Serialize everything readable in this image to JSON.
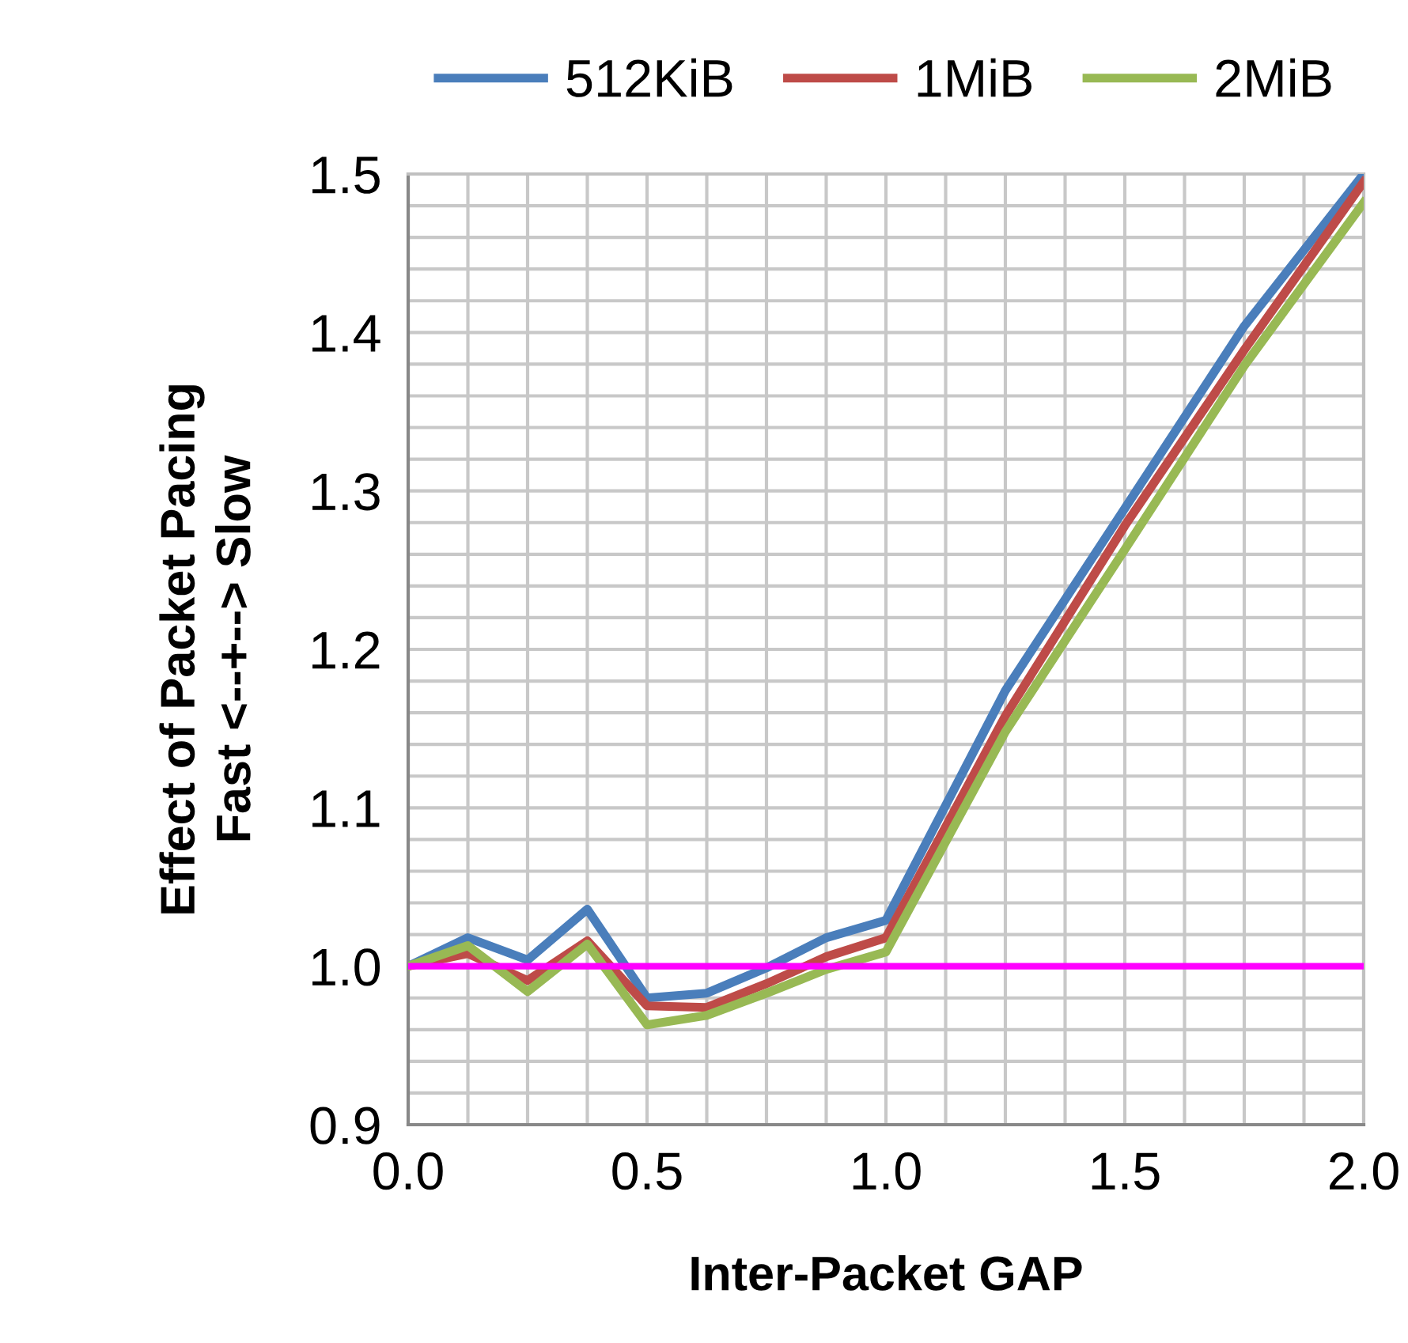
{
  "chart_data": {
    "type": "line",
    "xlabel": "Inter-Packet GAP",
    "ylabel": "Effect of Packet Pacing\nFast <--+--> Slow",
    "x": [
      0,
      0.125,
      0.25,
      0.375,
      0.5,
      0.625,
      0.75,
      0.875,
      1.0,
      1.25,
      1.5,
      1.75,
      2.0
    ],
    "series": [
      {
        "name": "512KiB",
        "color": "#4a7ebb",
        "values": [
          1.0,
          1.018,
          1.004,
          1.036,
          0.98,
          0.983,
          0.999,
          1.018,
          1.029,
          1.174,
          1.289,
          1.404,
          1.5
        ]
      },
      {
        "name": "1MiB",
        "color": "#be4b48",
        "values": [
          1.0,
          1.008,
          0.991,
          1.016,
          0.975,
          0.974,
          0.989,
          1.006,
          1.018,
          1.158,
          1.278,
          1.389,
          1.495
        ]
      },
      {
        "name": "2MiB",
        "color": "#98b954",
        "values": [
          1.0,
          1.013,
          0.984,
          1.014,
          0.963,
          0.969,
          0.983,
          0.998,
          1.009,
          1.148,
          1.263,
          1.379,
          1.482
        ]
      }
    ],
    "xlim": [
      0,
      2.0
    ],
    "ylim": [
      0.9,
      1.5
    ],
    "xticks": [
      {
        "value": 0,
        "label": "0.0"
      },
      {
        "value": 0.125,
        "label": null
      },
      {
        "value": 0.25,
        "label": null
      },
      {
        "value": 0.375,
        "label": null
      },
      0.5,
      {
        "value": 0.625,
        "label": null
      },
      {
        "value": 0.75,
        "label": null
      },
      {
        "value": 0.875,
        "label": null
      },
      {
        "value": 1.0,
        "label": "1.0"
      },
      {
        "value": 1.125,
        "label": null
      },
      {
        "value": 1.25,
        "label": null
      },
      {
        "value": 1.375,
        "label": null
      },
      1.5,
      {
        "value": 1.625,
        "label": null
      },
      {
        "value": 1.75,
        "label": null
      },
      {
        "value": 1.875,
        "label": null
      },
      {
        "value": 2.0,
        "label": "2.0"
      }
    ],
    "yticks": [
      0.9,
      {
        "value": 0.92,
        "label": null
      },
      {
        "value": 0.94,
        "label": null
      },
      {
        "value": 0.96,
        "label": null
      },
      {
        "value": 0.98,
        "label": null
      },
      {
        "value": 1.0,
        "label": "1.0"
      },
      {
        "value": 1.02,
        "label": null
      },
      {
        "value": 1.04,
        "label": null
      },
      {
        "value": 1.06,
        "label": null
      },
      {
        "value": 1.08,
        "label": null
      },
      1.1,
      {
        "value": 1.12,
        "label": null
      },
      {
        "value": 1.14,
        "label": null
      },
      {
        "value": 1.16,
        "label": null
      },
      {
        "value": 1.18,
        "label": null
      },
      1.2,
      {
        "value": 1.22,
        "label": null
      },
      {
        "value": 1.24,
        "label": null
      },
      {
        "value": 1.26,
        "label": null
      },
      {
        "value": 1.28,
        "label": null
      },
      1.3,
      {
        "value": 1.32,
        "label": null
      },
      {
        "value": 1.34,
        "label": null
      },
      {
        "value": 1.36,
        "label": null
      },
      {
        "value": 1.38,
        "label": null
      },
      1.4,
      {
        "value": 1.42,
        "label": null
      },
      {
        "value": 1.44,
        "label": null
      },
      {
        "value": 1.46,
        "label": null
      },
      {
        "value": 1.48,
        "label": null
      },
      1.5
    ],
    "grid": true,
    "legend": "top",
    "marker": "none",
    "line_style": "solid",
    "ref_lines": [
      {
        "axis": "y",
        "value": 1.0,
        "color": "#ff00ff",
        "line_style": "solid"
      }
    ]
  }
}
